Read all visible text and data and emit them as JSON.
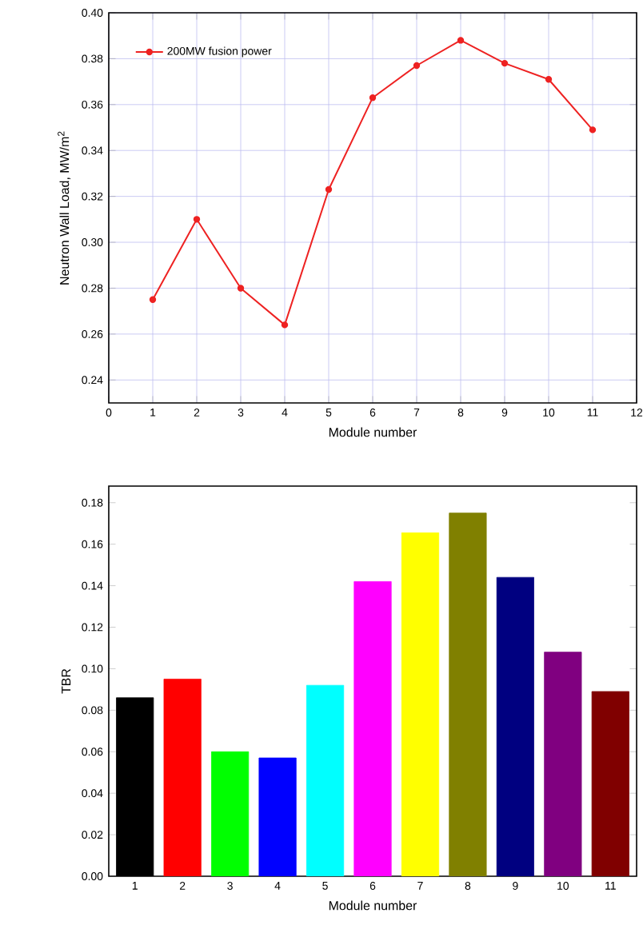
{
  "chart_data": [
    {
      "type": "line",
      "xlabel": "Module number",
      "ylabel": "Neutron Wall Load, MW/m$^{2}$",
      "x": [
        1,
        2,
        3,
        4,
        5,
        6,
        7,
        8,
        9,
        10,
        11
      ],
      "series": [
        {
          "name": "200MW fusion power",
          "color": "#ee2222",
          "values": [
            0.275,
            0.31,
            0.28,
            0.264,
            0.323,
            0.363,
            0.377,
            0.388,
            0.378,
            0.371,
            0.349
          ]
        }
      ],
      "xlim": [
        0,
        12
      ],
      "xticks": [
        0,
        1,
        2,
        3,
        4,
        5,
        6,
        7,
        8,
        9,
        10,
        11,
        12
      ],
      "ylim": [
        0.23,
        0.4
      ],
      "yticks": [
        {
          "value": 0.24,
          "label": "0.24"
        },
        {
          "value": 0.26,
          "label": "0.26"
        },
        {
          "value": 0.28,
          "label": "0.28"
        },
        {
          "value": 0.3,
          "label": "0.30"
        },
        {
          "value": 0.32,
          "label": "0.32"
        },
        {
          "value": 0.34,
          "label": "0.34"
        },
        {
          "value": 0.36,
          "label": "0.36"
        },
        {
          "value": 0.38,
          "label": "0.38"
        },
        {
          "value": 0.4,
          "label": "0.40"
        }
      ],
      "grid": true,
      "legend": "top left",
      "marker": "circle"
    },
    {
      "type": "bar",
      "xlabel": "Module number",
      "ylabel": "TBR",
      "categories": [
        "1",
        "2",
        "3",
        "4",
        "5",
        "6",
        "7",
        "8",
        "9",
        "10",
        "11"
      ],
      "values": [
        0.086,
        0.095,
        0.06,
        0.057,
        0.092,
        0.142,
        0.1655,
        0.175,
        0.144,
        0.108,
        0.089
      ],
      "colors": [
        "#000000",
        "#ff0000",
        "#00ff00",
        "#0000ff",
        "#00ffff",
        "#ff00ff",
        "#ffff00",
        "#808000",
        "#000080",
        "#800080",
        "#800000"
      ],
      "ylim": [
        0,
        0.188
      ],
      "yticks": [
        {
          "value": 0.0,
          "label": "0.00"
        },
        {
          "value": 0.02,
          "label": "0.02"
        },
        {
          "value": 0.04,
          "label": "0.04"
        },
        {
          "value": 0.06,
          "label": "0.06"
        },
        {
          "value": 0.08,
          "label": "0.08"
        },
        {
          "value": 0.1,
          "label": "0.10"
        },
        {
          "value": 0.12,
          "label": "0.12"
        },
        {
          "value": 0.14,
          "label": "0.14"
        },
        {
          "value": 0.16,
          "label": "0.16"
        },
        {
          "value": 0.18,
          "label": "0.18"
        }
      ]
    }
  ]
}
